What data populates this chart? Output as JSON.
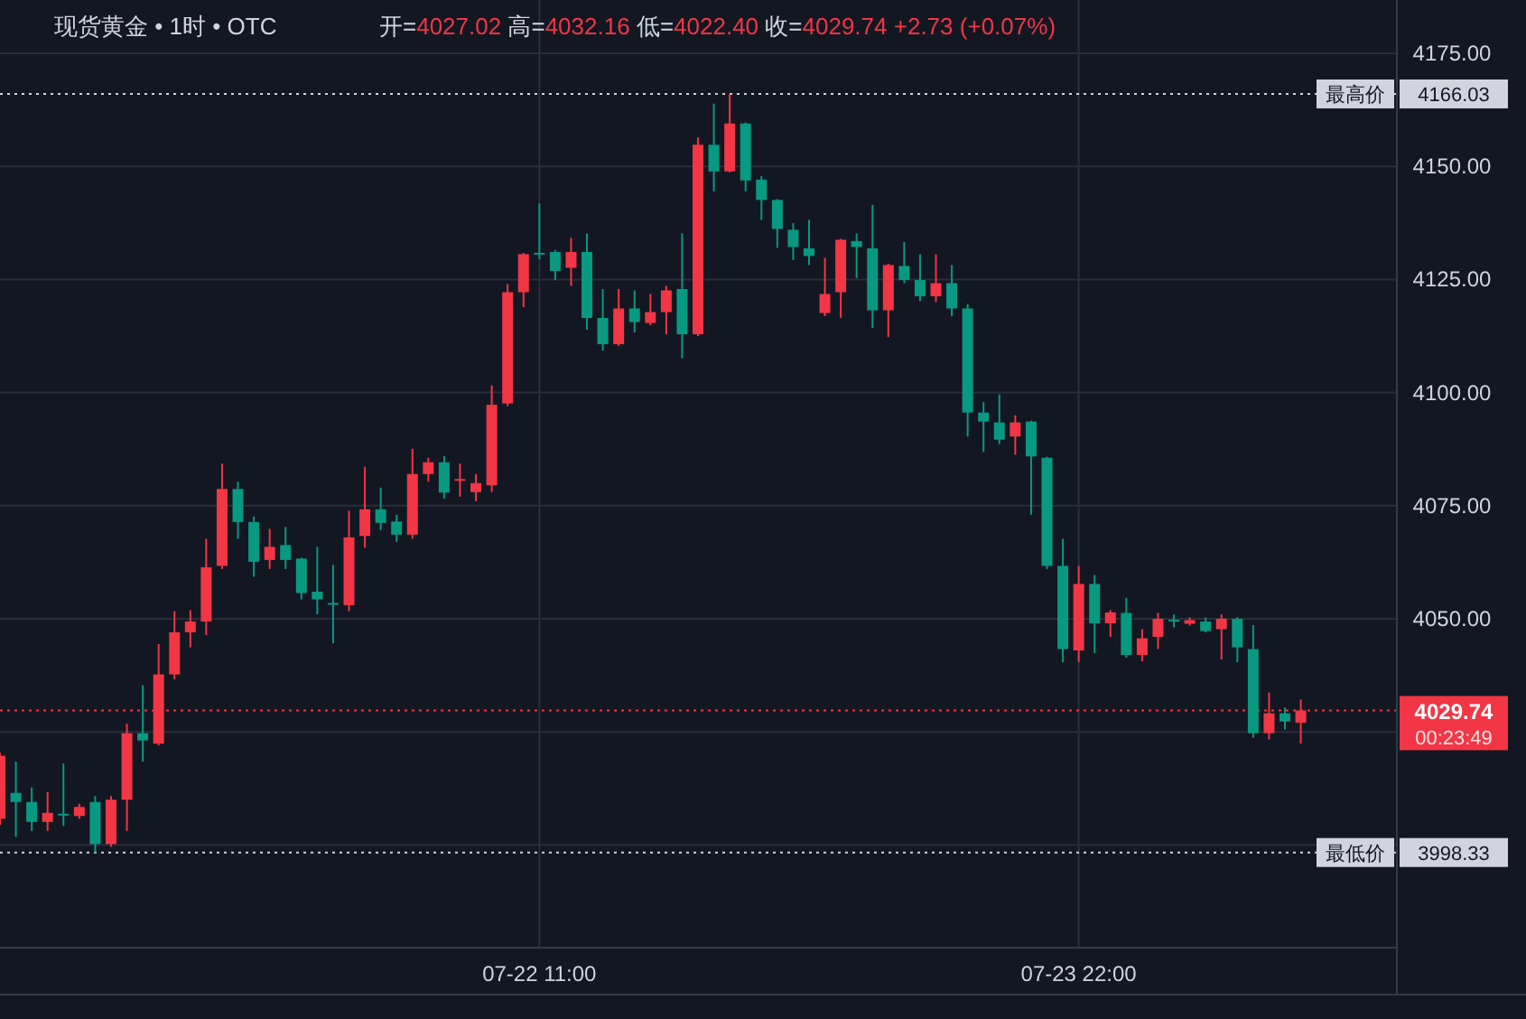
{
  "chart_data": {
    "type": "candlestick",
    "title": "现货黄金 • 1时 • OTC",
    "subtitle": "开=4027.02 高=4032.16 低=4022.40 收=4029.74 +2.73 (+0.07%)",
    "categories": [
      null,
      null,
      null,
      null,
      null,
      null,
      null,
      null,
      null,
      null,
      null,
      null,
      null,
      null,
      null,
      null,
      null,
      null,
      null,
      null,
      null,
      null,
      null,
      null,
      null,
      null,
      null,
      null,
      null,
      null,
      null,
      null,
      null,
      null,
      "07-22 11:00",
      null,
      null,
      null,
      null,
      null,
      null,
      null,
      null,
      null,
      null,
      null,
      null,
      null,
      null,
      null,
      null,
      null,
      null,
      null,
      null,
      null,
      null,
      null,
      null,
      null,
      null,
      null,
      null,
      null,
      null,
      null,
      null,
      null,
      "07-23 22:00",
      null,
      null,
      null,
      null,
      null,
      null,
      null,
      null,
      null,
      null,
      null,
      null,
      null,
      null
    ],
    "ohlc": [
      [
        4005.8,
        4020.4,
        4004.4,
        4019.7
      ],
      [
        4011.5,
        4018.4,
        4001.8,
        4009.5
      ],
      [
        4009.5,
        4012.7,
        4003.1,
        4005.1
      ],
      [
        4005.1,
        4011.7,
        4003.1,
        4007.1
      ],
      [
        4006.9,
        4018.0,
        4004.2,
        4006.7
      ],
      [
        4006.4,
        4009.1,
        4005.8,
        4008.4
      ],
      [
        4009.5,
        4010.8,
        3998.33,
        4000.2
      ],
      [
        4000.2,
        4010.8,
        3999.6,
        4010.0
      ],
      [
        4010.0,
        4026.8,
        4003.1,
        4024.7
      ],
      [
        4024.7,
        4035.3,
        4018.4,
        4023.1
      ],
      [
        4022.4,
        4044.4,
        4022.0,
        4037.7
      ],
      [
        4037.7,
        4051.7,
        4036.6,
        4047.0
      ],
      [
        4047.0,
        4051.9,
        4043.7,
        4049.4
      ],
      [
        4049.4,
        4067.7,
        4046.4,
        4061.4
      ],
      [
        4061.7,
        4084.3,
        4061.0,
        4078.7
      ],
      [
        4078.7,
        4080.3,
        4067.7,
        4071.4
      ],
      [
        4071.4,
        4072.6,
        4059.3,
        4062.6
      ],
      [
        4063.0,
        4069.9,
        4061.0,
        4065.9
      ],
      [
        4066.3,
        4070.3,
        4061.0,
        4063.0
      ],
      [
        4063.3,
        4063.5,
        4054.3,
        4055.7
      ],
      [
        4056.0,
        4065.9,
        4051.0,
        4054.3
      ],
      [
        4053.5,
        4061.9,
        4044.6,
        4053.2
      ],
      [
        4053.0,
        4073.9,
        4051.7,
        4068.0
      ],
      [
        4068.3,
        4083.6,
        4065.7,
        4074.2
      ],
      [
        4074.2,
        4079.0,
        4069.6,
        4071.2
      ],
      [
        4071.5,
        4073.0,
        4067.0,
        4068.6
      ],
      [
        4068.6,
        4087.6,
        4067.7,
        4082.0
      ],
      [
        4082.0,
        4085.6,
        4080.3,
        4084.6
      ],
      [
        4084.6,
        4086.0,
        4076.6,
        4077.9
      ],
      [
        4080.6,
        4084.3,
        4077.0,
        4080.9
      ],
      [
        4078.0,
        4082.0,
        4076.0,
        4080.0
      ],
      [
        4079.5,
        4101.6,
        4078.0,
        4097.3
      ],
      [
        4097.6,
        4124.0,
        4097.0,
        4122.2
      ],
      [
        4122.2,
        4130.9,
        4118.9,
        4130.6
      ],
      [
        4130.9,
        4141.8,
        4129.5,
        4130.8
      ],
      [
        4131.1,
        4131.5,
        4124.9,
        4126.9
      ],
      [
        4127.6,
        4134.2,
        4123.6,
        4131.1
      ],
      [
        4131.1,
        4135.2,
        4113.9,
        4116.5
      ],
      [
        4116.5,
        4122.9,
        4109.3,
        4110.7
      ],
      [
        4110.7,
        4122.9,
        4110.3,
        4118.6
      ],
      [
        4118.6,
        4122.6,
        4113.3,
        4115.6
      ],
      [
        4115.4,
        4121.8,
        4114.9,
        4117.8
      ],
      [
        4117.8,
        4123.6,
        4112.9,
        4122.6
      ],
      [
        4122.9,
        4135.2,
        4107.6,
        4112.9
      ],
      [
        4112.9,
        4156.4,
        4112.5,
        4154.8
      ],
      [
        4154.8,
        4163.9,
        4144.5,
        4148.9
      ],
      [
        4148.9,
        4166.03,
        4148.7,
        4159.5
      ],
      [
        4159.5,
        4159.7,
        4144.5,
        4146.9
      ],
      [
        4147.1,
        4147.9,
        4138.2,
        4142.6
      ],
      [
        4142.6,
        4142.8,
        4132.0,
        4136.2
      ],
      [
        4136.0,
        4137.5,
        4129.3,
        4132.2
      ],
      [
        4131.9,
        4138.2,
        4128.2,
        4130.2
      ],
      [
        4117.6,
        4129.8,
        4116.9,
        4121.8
      ],
      [
        4122.2,
        4134.0,
        4116.5,
        4133.8
      ],
      [
        4133.5,
        4135.2,
        4125.3,
        4132.2
      ],
      [
        4131.9,
        4141.5,
        4114.3,
        4118.2
      ],
      [
        4118.2,
        4128.5,
        4112.3,
        4128.2
      ],
      [
        4128.0,
        4133.3,
        4124.2,
        4124.9
      ],
      [
        4124.9,
        4130.6,
        4120.2,
        4121.3
      ],
      [
        4121.3,
        4130.6,
        4120.0,
        4124.2
      ],
      [
        4124.2,
        4128.2,
        4116.9,
        4118.6
      ],
      [
        4118.6,
        4119.6,
        4090.3,
        4095.6
      ],
      [
        4095.6,
        4097.9,
        4086.9,
        4093.6
      ],
      [
        4093.4,
        4099.6,
        4088.6,
        4089.6
      ],
      [
        4090.3,
        4095.0,
        4086.3,
        4093.4
      ],
      [
        4093.6,
        4093.8,
        4073.0,
        4085.9
      ],
      [
        4085.6,
        4085.8,
        4061.0,
        4061.7
      ],
      [
        4061.7,
        4067.7,
        4040.4,
        4043.3
      ],
      [
        4043.0,
        4061.7,
        4040.4,
        4057.7
      ],
      [
        4057.7,
        4059.7,
        4042.4,
        4049.0
      ],
      [
        4049.0,
        4051.9,
        4046.0,
        4051.4
      ],
      [
        4051.3,
        4054.6,
        4041.4,
        4042.0
      ],
      [
        4042.0,
        4047.7,
        4040.6,
        4045.7
      ],
      [
        4046.0,
        4051.3,
        4043.3,
        4050.0
      ],
      [
        4049.8,
        4051.0,
        4048.1,
        4049.6
      ],
      [
        4048.9,
        4050.3,
        4048.5,
        4049.7
      ],
      [
        4049.4,
        4050.3,
        4047.0,
        4047.3
      ],
      [
        4047.7,
        4051.0,
        4041.0,
        4050.0
      ],
      [
        4050.0,
        4050.4,
        4040.4,
        4043.7
      ],
      [
        4043.3,
        4048.6,
        4023.7,
        4024.7
      ],
      [
        4024.7,
        4033.7,
        4023.3,
        4029.1
      ],
      [
        4029.1,
        4030.4,
        4025.5,
        4027.3
      ],
      [
        4027.02,
        4032.16,
        4022.4,
        4029.74
      ]
    ],
    "colors": [
      "#f23645",
      "#089981",
      "#089981",
      "#f23645",
      "#089981",
      "#f23645",
      "#089981",
      "#f23645",
      "#f23645",
      "#089981",
      "#f23645",
      "#f23645",
      "#f23645",
      "#f23645",
      "#f23645",
      "#089981",
      "#089981",
      "#f23645",
      "#089981",
      "#089981",
      "#089981",
      "#089981",
      "#f23645",
      "#f23645",
      "#089981",
      "#089981",
      "#f23645",
      "#f23645",
      "#089981",
      "#f23645",
      "#f23645",
      "#f23645",
      "#f23645",
      "#f23645",
      "#089981",
      "#089981",
      "#f23645",
      "#089981",
      "#089981",
      "#f23645",
      "#089981",
      "#f23645",
      "#f23645",
      "#089981",
      "#f23645",
      "#089981",
      "#f23645",
      "#089981",
      "#089981",
      "#089981",
      "#089981",
      "#089981",
      "#f23645",
      "#f23645",
      "#089981",
      "#089981",
      "#f23645",
      "#089981",
      "#089981",
      "#f23645",
      "#089981",
      "#089981",
      "#089981",
      "#089981",
      "#f23645",
      "#089981",
      "#089981",
      "#089981",
      "#f23645",
      "#089981",
      "#f23645",
      "#089981",
      "#f23645",
      "#f23645",
      "#089981",
      "#f23645",
      "#089981",
      "#f23645",
      "#089981",
      "#089981",
      "#f23645",
      "#089981",
      "#f23645"
    ],
    "ylim": [
      3977.5,
      4186.8
    ],
    "yticks": [
      {
        "value": 4000,
        "label": null
      },
      {
        "value": 4025,
        "label": null
      },
      {
        "value": 4050,
        "label": "4050.00"
      },
      {
        "value": 4075,
        "label": "4075.00"
      },
      {
        "value": 4100,
        "label": "4100.00"
      },
      {
        "value": 4125,
        "label": "4125.00"
      },
      {
        "value": 4150,
        "label": "4150.00"
      },
      {
        "value": 4175,
        "label": "4175.00"
      }
    ],
    "grid": true,
    "ref_lines": [
      {
        "axis": "y",
        "value": 4166.03,
        "label": "4166.03",
        "color": "#d1d4dc",
        "line_style": "dotted"
      },
      {
        "axis": "y",
        "value": 3998.33,
        "label": "3998.33",
        "color": "#d1d4dc",
        "line_style": "dotted"
      },
      {
        "axis": "y",
        "value": 4029.74,
        "label": "4029.74",
        "color": "#f23645",
        "line_style": "dotted"
      }
    ],
    "annotations": [
      {
        "text": "最高价",
        "y": 4166.03
      },
      {
        "text": "最低价",
        "y": 3998.33
      },
      "00:23:49"
    ]
  }
}
